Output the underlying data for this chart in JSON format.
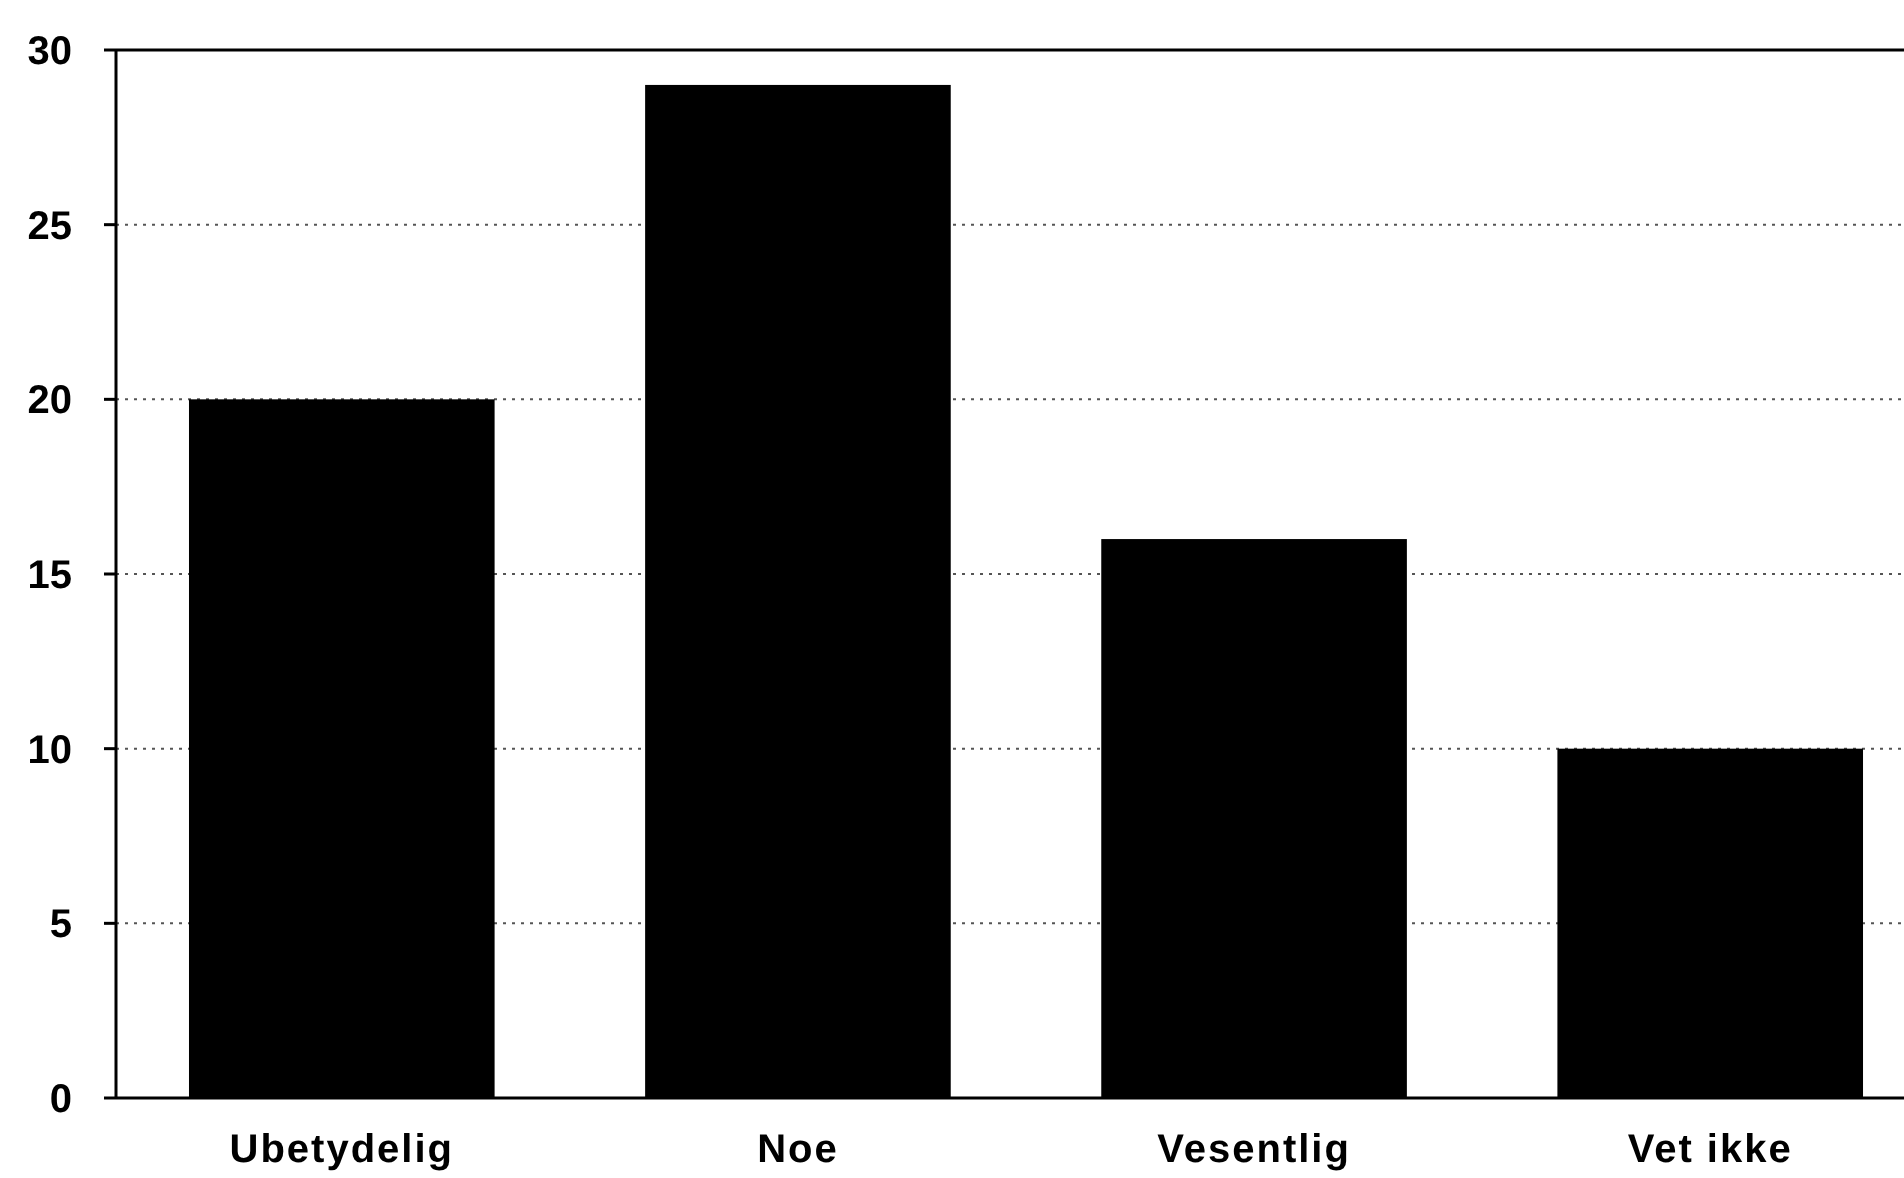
{
  "chart_data": {
    "type": "bar",
    "categories": [
      "Ubetydelig",
      "Noe",
      "Vesentlig",
      "Vet ikke"
    ],
    "values": [
      20,
      29,
      16,
      10
    ],
    "color": "#000000",
    "ylim": [
      0,
      30
    ],
    "yticks": [
      0,
      5,
      10,
      15,
      20,
      25,
      30
    ],
    "grid": "y"
  }
}
